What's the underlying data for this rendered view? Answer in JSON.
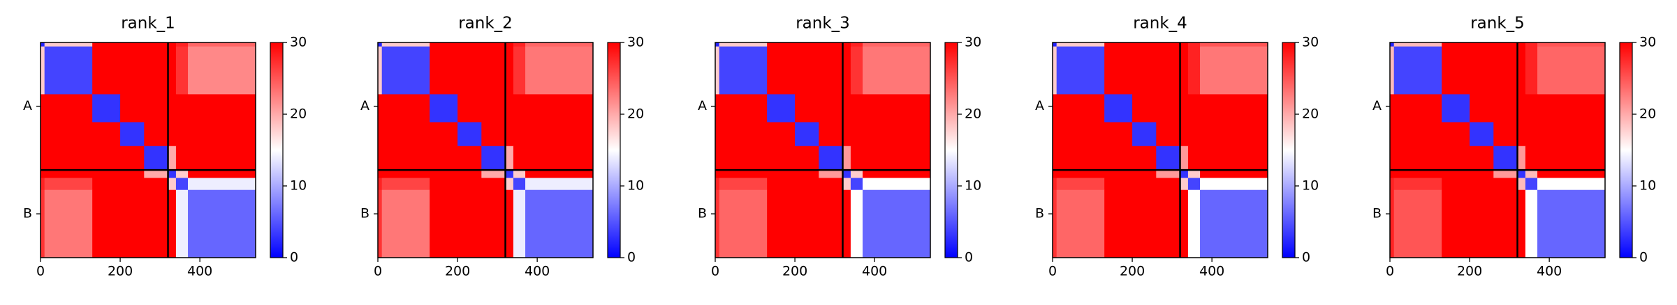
{
  "chart_data": [
    {
      "type": "heatmap",
      "title": "rank_1",
      "x_edges": [
        0,
        10,
        130,
        200,
        260,
        320,
        340,
        370,
        540
      ],
      "y_edges": [
        0,
        10,
        130,
        200,
        260,
        320,
        340,
        370,
        540
      ],
      "z": [
        [
          2,
          18,
          30,
          30,
          30,
          30,
          28,
          24
        ],
        [
          18,
          4,
          30,
          30,
          30,
          30,
          27,
          22
        ],
        [
          30,
          30,
          3,
          30,
          30,
          30,
          30,
          30
        ],
        [
          30,
          30,
          30,
          3,
          30,
          30,
          30,
          30
        ],
        [
          30,
          30,
          30,
          30,
          3,
          20,
          30,
          30
        ],
        [
          30,
          30,
          30,
          30,
          20,
          3,
          18,
          30
        ],
        [
          28,
          26,
          30,
          30,
          30,
          18,
          4,
          14
        ],
        [
          27,
          23,
          30,
          30,
          30,
          30,
          14,
          6
        ]
      ],
      "xlim": [
        0,
        540
      ],
      "ylim": [
        540,
        0
      ],
      "xticks": [
        0,
        200,
        400
      ],
      "yticks": [
        {
          "value": 160,
          "label": "A"
        },
        {
          "value": 430,
          "label": "B"
        }
      ],
      "chain_breaks": [
        320
      ],
      "clim": [
        0,
        30
      ],
      "cbar_ticks": [
        0,
        10,
        20,
        30
      ],
      "colormap": [
        "#0000ff",
        "#ffffff",
        "#ff0000"
      ]
    },
    {
      "type": "heatmap",
      "title": "rank_2",
      "x_edges": [
        0,
        10,
        130,
        200,
        260,
        320,
        340,
        370,
        540
      ],
      "y_edges": [
        0,
        10,
        130,
        200,
        260,
        320,
        340,
        370,
        540
      ],
      "z": [
        [
          2,
          18,
          30,
          30,
          30,
          30,
          28,
          24
        ],
        [
          18,
          4,
          30,
          30,
          30,
          30,
          27,
          23
        ],
        [
          30,
          30,
          3,
          30,
          30,
          30,
          30,
          30
        ],
        [
          30,
          30,
          30,
          3,
          30,
          30,
          30,
          30
        ],
        [
          30,
          30,
          30,
          30,
          3,
          20,
          30,
          30
        ],
        [
          30,
          30,
          30,
          30,
          20,
          3,
          18,
          30
        ],
        [
          28,
          26,
          30,
          30,
          30,
          18,
          4,
          14
        ],
        [
          27,
          23,
          30,
          30,
          30,
          30,
          14,
          6
        ]
      ],
      "xlim": [
        0,
        540
      ],
      "ylim": [
        540,
        0
      ],
      "xticks": [
        0,
        200,
        400
      ],
      "yticks": [
        {
          "value": 160,
          "label": "A"
        },
        {
          "value": 430,
          "label": "B"
        }
      ],
      "chain_breaks": [
        320
      ],
      "clim": [
        0,
        30
      ],
      "cbar_ticks": [
        0,
        10,
        20,
        30
      ],
      "colormap": [
        "#0000ff",
        "#ffffff",
        "#ff0000"
      ]
    },
    {
      "type": "heatmap",
      "title": "rank_3",
      "x_edges": [
        0,
        10,
        130,
        200,
        260,
        320,
        340,
        370,
        540
      ],
      "y_edges": [
        0,
        10,
        130,
        200,
        260,
        320,
        340,
        370,
        540
      ],
      "z": [
        [
          2,
          18,
          30,
          30,
          30,
          30,
          28,
          24
        ],
        [
          18,
          4,
          30,
          30,
          30,
          30,
          27,
          23
        ],
        [
          30,
          30,
          3,
          30,
          30,
          30,
          30,
          30
        ],
        [
          30,
          30,
          30,
          3,
          30,
          30,
          30,
          30
        ],
        [
          30,
          30,
          30,
          30,
          3,
          21,
          30,
          30
        ],
        [
          30,
          30,
          30,
          30,
          21,
          3,
          18,
          30
        ],
        [
          28,
          26,
          30,
          30,
          30,
          18,
          4,
          15
        ],
        [
          27,
          24,
          30,
          30,
          30,
          30,
          15,
          6
        ]
      ],
      "xlim": [
        0,
        540
      ],
      "ylim": [
        540,
        0
      ],
      "xticks": [
        0,
        200,
        400
      ],
      "yticks": [
        {
          "value": 160,
          "label": "A"
        },
        {
          "value": 430,
          "label": "B"
        }
      ],
      "chain_breaks": [
        320
      ],
      "clim": [
        0,
        30
      ],
      "cbar_ticks": [
        0,
        10,
        20,
        30
      ],
      "colormap": [
        "#0000ff",
        "#ffffff",
        "#ff0000"
      ]
    },
    {
      "type": "heatmap",
      "title": "rank_4",
      "x_edges": [
        0,
        10,
        130,
        200,
        260,
        320,
        340,
        370,
        540
      ],
      "y_edges": [
        0,
        10,
        130,
        200,
        260,
        320,
        340,
        370,
        540
      ],
      "z": [
        [
          2,
          18,
          30,
          30,
          30,
          30,
          28,
          25
        ],
        [
          18,
          4,
          30,
          30,
          30,
          30,
          28,
          23
        ],
        [
          30,
          30,
          3,
          30,
          30,
          30,
          30,
          30
        ],
        [
          30,
          30,
          30,
          3,
          30,
          30,
          30,
          30
        ],
        [
          30,
          30,
          30,
          30,
          3,
          21,
          30,
          30
        ],
        [
          30,
          30,
          30,
          30,
          21,
          3,
          18,
          30
        ],
        [
          28,
          26,
          30,
          30,
          30,
          18,
          4,
          15
        ],
        [
          27,
          24,
          30,
          30,
          30,
          30,
          15,
          6
        ]
      ],
      "xlim": [
        0,
        540
      ],
      "ylim": [
        540,
        0
      ],
      "xticks": [
        0,
        200,
        400
      ],
      "yticks": [
        {
          "value": 160,
          "label": "A"
        },
        {
          "value": 430,
          "label": "B"
        }
      ],
      "chain_breaks": [
        320
      ],
      "clim": [
        0,
        30
      ],
      "cbar_ticks": [
        0,
        10,
        20,
        30
      ],
      "colormap": [
        "#0000ff",
        "#ffffff",
        "#ff0000"
      ]
    },
    {
      "type": "heatmap",
      "title": "rank_5",
      "x_edges": [
        0,
        10,
        130,
        200,
        260,
        320,
        340,
        370,
        540
      ],
      "y_edges": [
        0,
        10,
        130,
        200,
        260,
        320,
        340,
        370,
        540
      ],
      "z": [
        [
          2,
          19,
          30,
          30,
          30,
          30,
          28,
          25
        ],
        [
          19,
          4,
          30,
          30,
          30,
          30,
          28,
          24
        ],
        [
          30,
          30,
          3,
          30,
          30,
          30,
          30,
          30
        ],
        [
          30,
          30,
          30,
          3,
          30,
          30,
          30,
          30
        ],
        [
          30,
          30,
          30,
          30,
          3,
          21,
          30,
          30
        ],
        [
          30,
          30,
          30,
          30,
          21,
          3,
          19,
          30
        ],
        [
          28,
          27,
          30,
          30,
          30,
          19,
          4,
          15
        ],
        [
          28,
          25,
          30,
          30,
          30,
          30,
          15,
          6
        ]
      ],
      "xlim": [
        0,
        540
      ],
      "ylim": [
        540,
        0
      ],
      "xticks": [
        0,
        200,
        400
      ],
      "yticks": [
        {
          "value": 160,
          "label": "A"
        },
        {
          "value": 430,
          "label": "B"
        }
      ],
      "chain_breaks": [
        320
      ],
      "clim": [
        0,
        30
      ],
      "cbar_ticks": [
        0,
        10,
        20,
        30
      ],
      "colormap": [
        "#0000ff",
        "#ffffff",
        "#ff0000"
      ]
    }
  ]
}
